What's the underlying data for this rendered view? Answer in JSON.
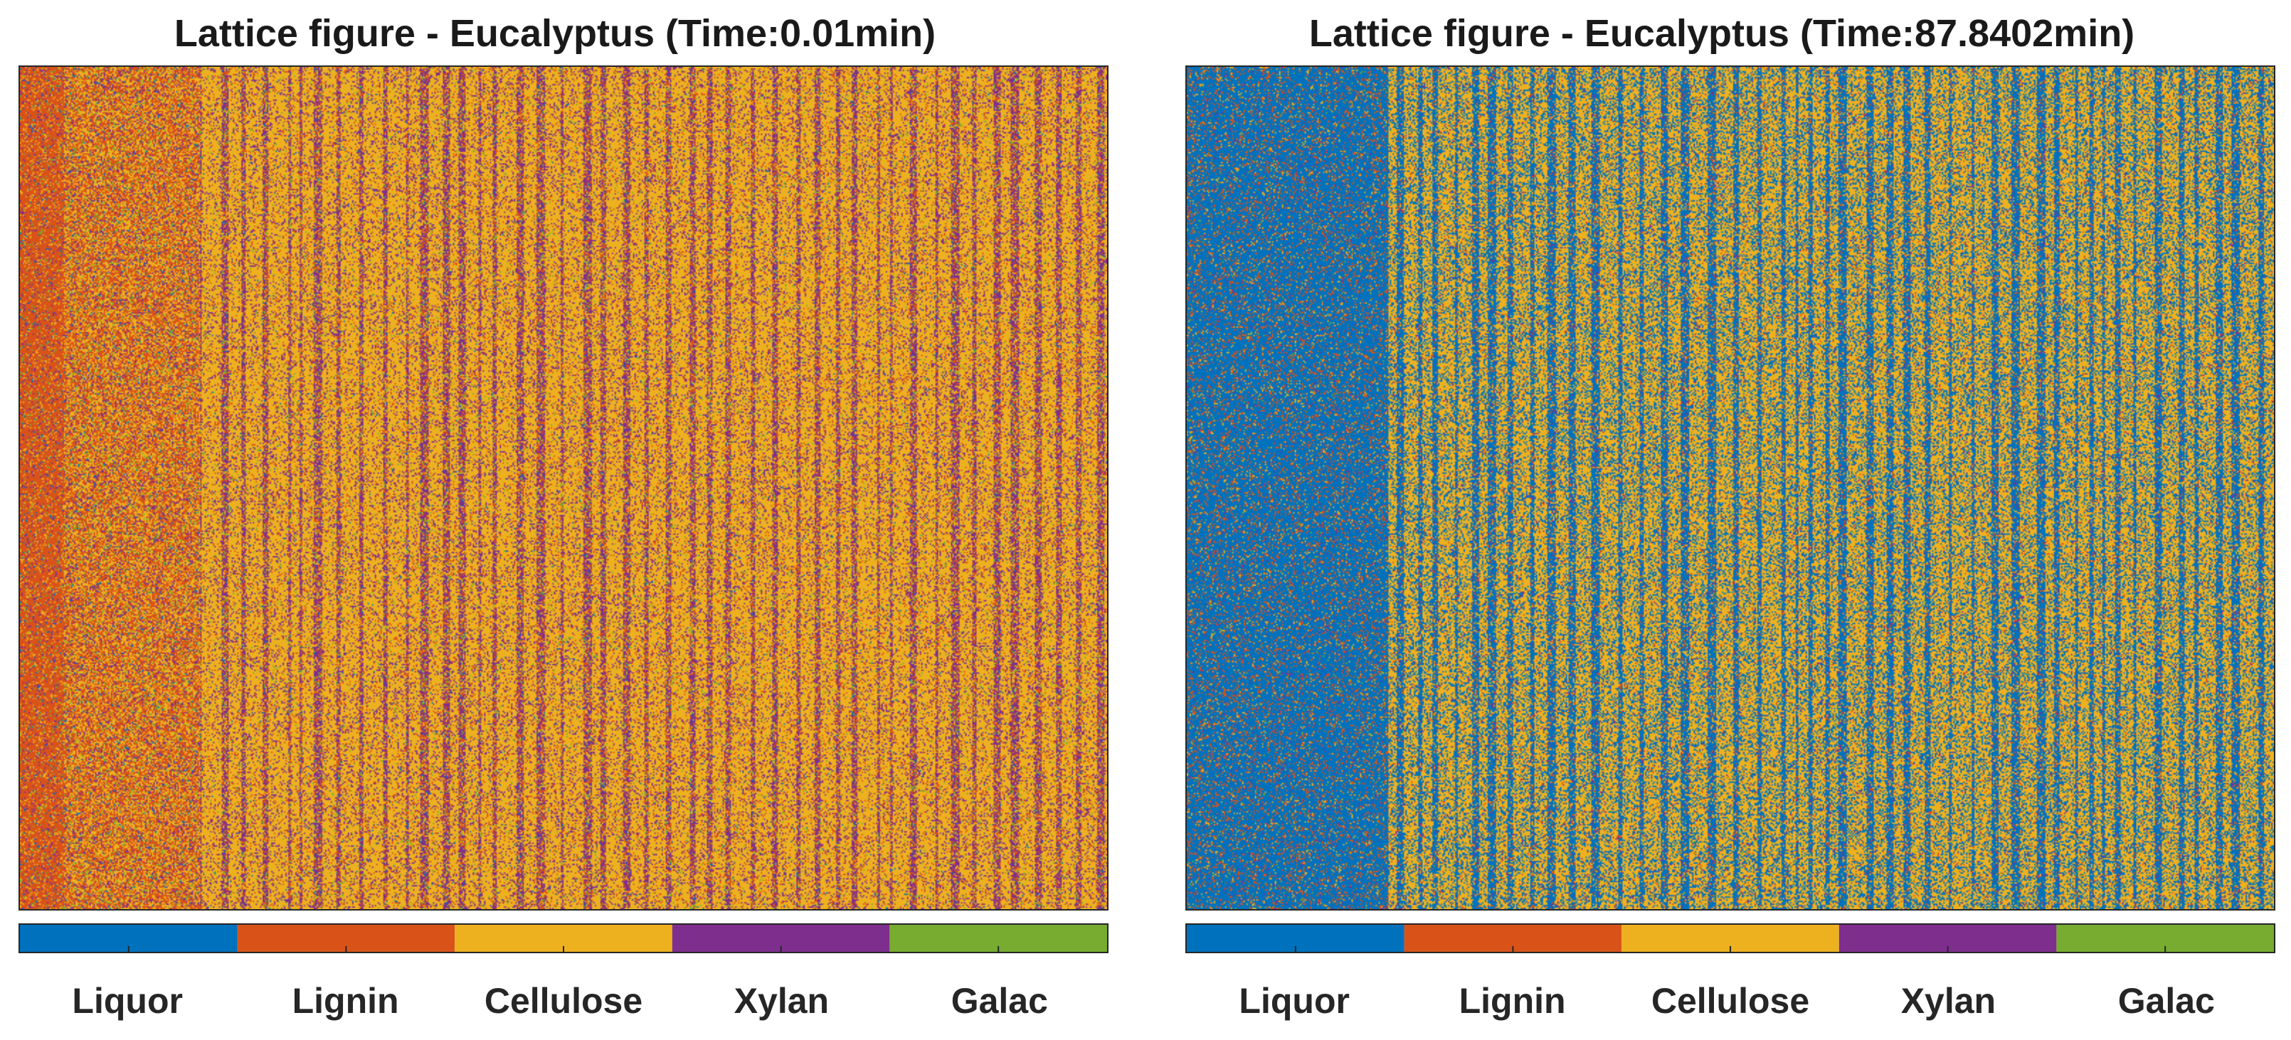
{
  "chart_data": [
    {
      "type": "heatmap",
      "title": "Lattice figure - Eucalyptus (Time:0.01min)",
      "xlabel": "",
      "ylabel": "",
      "categories": [
        "Liquor",
        "Lignin",
        "Cellulose",
        "Xylan",
        "Galac"
      ],
      "colors": [
        "#0072BD",
        "#D95319",
        "#EDB120",
        "#7E2F8E",
        "#77AC30"
      ],
      "regions": [
        {
          "region": "left liquor band",
          "extent": [
            0,
            0.04
          ],
          "fractions": [
            0.02,
            0.74,
            0.12,
            0.08,
            0.04
          ]
        },
        {
          "region": "mixed zone",
          "extent": [
            0.04,
            0.165
          ],
          "fractions": [
            0.02,
            0.42,
            0.38,
            0.12,
            0.06
          ]
        },
        {
          "region": "fiber zone",
          "extent": [
            0.165,
            1.0
          ],
          "fractions": [
            0.01,
            0.14,
            0.55,
            0.25,
            0.05
          ]
        }
      ],
      "stripes": "vertical cellulose-rich stripes alternating with xylan/lignin-rich stripes"
    },
    {
      "type": "heatmap",
      "title": "Lattice figure - Eucalyptus (Time:87.8402min)",
      "xlabel": "",
      "ylabel": "",
      "categories": [
        "Liquor",
        "Lignin",
        "Cellulose",
        "Xylan",
        "Galac"
      ],
      "colors": [
        "#0072BD",
        "#D95319",
        "#EDB120",
        "#7E2F8E",
        "#77AC30"
      ],
      "regions": [
        {
          "region": "liquor zone",
          "extent": [
            0,
            0.185
          ],
          "fractions": [
            0.78,
            0.14,
            0.05,
            0.02,
            0.01
          ]
        },
        {
          "region": "fiber zone",
          "extent": [
            0.185,
            1.0
          ],
          "fractions": [
            0.47,
            0.06,
            0.42,
            0.04,
            0.01
          ]
        }
      ],
      "stripes": "vertical cellulose stripes remaining between liquor-filled gaps"
    }
  ]
}
